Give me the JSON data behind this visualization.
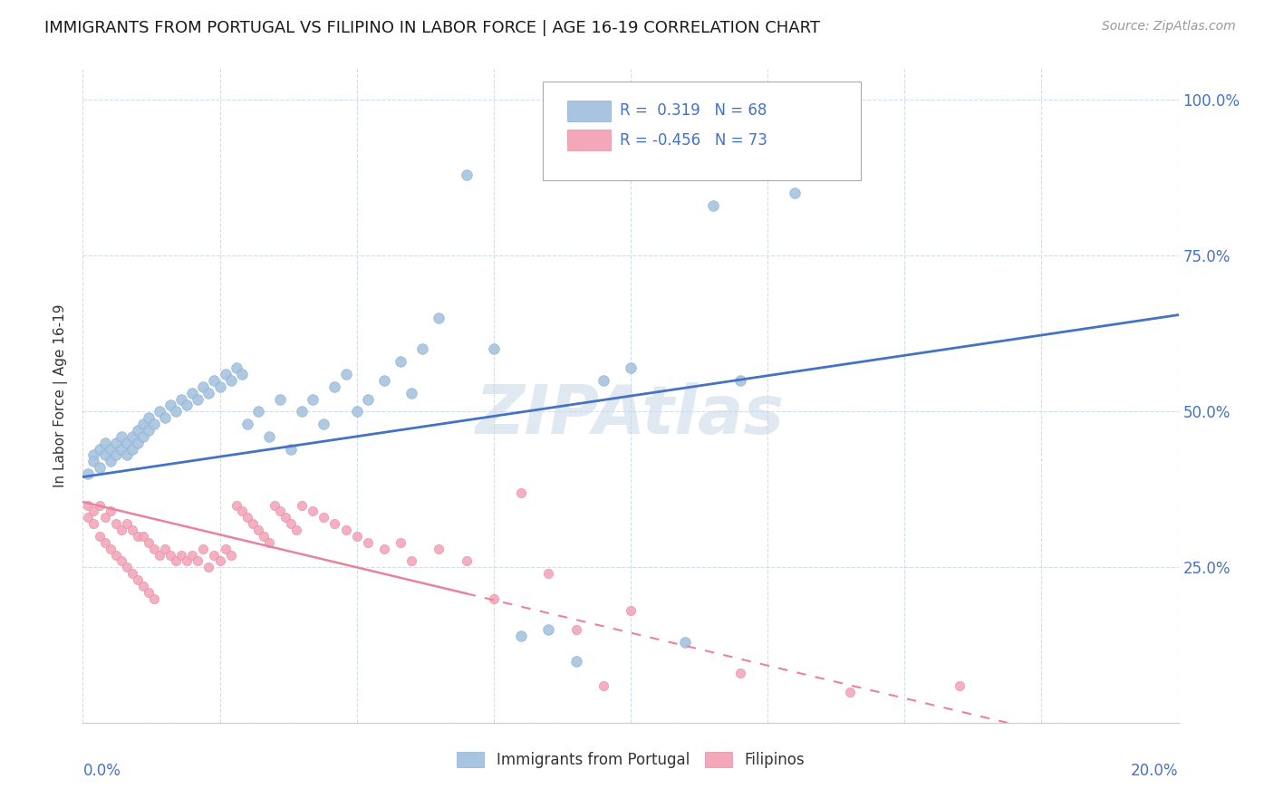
{
  "title": "IMMIGRANTS FROM PORTUGAL VS FILIPINO IN LABOR FORCE | AGE 16-19 CORRELATION CHART",
  "source": "Source: ZipAtlas.com",
  "ylabel": "In Labor Force | Age 16-19",
  "color_portugal": "#a8c4e0",
  "color_filipino": "#f4a7b9",
  "line_color_portugal": "#4472c4",
  "line_color_filipino": "#e8839a",
  "watermark_color": "#c8d8e8",
  "xlim": [
    0,
    0.2
  ],
  "ylim": [
    0,
    1.05
  ],
  "ytick_vals": [
    0.0,
    0.25,
    0.5,
    0.75,
    1.0
  ],
  "ytick_labels": [
    "",
    "25.0%",
    "50.0%",
    "75.0%",
    "100.0%"
  ],
  "portugal_x": [
    0.001,
    0.002,
    0.002,
    0.003,
    0.003,
    0.004,
    0.004,
    0.005,
    0.005,
    0.006,
    0.006,
    0.007,
    0.007,
    0.008,
    0.008,
    0.009,
    0.009,
    0.01,
    0.01,
    0.011,
    0.011,
    0.012,
    0.012,
    0.013,
    0.014,
    0.015,
    0.016,
    0.017,
    0.018,
    0.019,
    0.02,
    0.021,
    0.022,
    0.023,
    0.024,
    0.025,
    0.026,
    0.027,
    0.028,
    0.029,
    0.03,
    0.032,
    0.034,
    0.036,
    0.038,
    0.04,
    0.042,
    0.044,
    0.046,
    0.048,
    0.05,
    0.052,
    0.055,
    0.058,
    0.06,
    0.062,
    0.065,
    0.07,
    0.075,
    0.08,
    0.085,
    0.09,
    0.095,
    0.1,
    0.11,
    0.115,
    0.12,
    0.13
  ],
  "portugal_y": [
    0.4,
    0.43,
    0.42,
    0.44,
    0.41,
    0.43,
    0.45,
    0.42,
    0.44,
    0.43,
    0.45,
    0.44,
    0.46,
    0.43,
    0.45,
    0.44,
    0.46,
    0.45,
    0.47,
    0.46,
    0.48,
    0.47,
    0.49,
    0.48,
    0.5,
    0.49,
    0.51,
    0.5,
    0.52,
    0.51,
    0.53,
    0.52,
    0.54,
    0.53,
    0.55,
    0.54,
    0.56,
    0.55,
    0.57,
    0.56,
    0.48,
    0.5,
    0.46,
    0.52,
    0.44,
    0.5,
    0.52,
    0.48,
    0.54,
    0.56,
    0.5,
    0.52,
    0.55,
    0.58,
    0.53,
    0.6,
    0.65,
    0.88,
    0.6,
    0.14,
    0.15,
    0.1,
    0.55,
    0.57,
    0.13,
    0.83,
    0.55,
    0.85
  ],
  "filipino_x": [
    0.001,
    0.001,
    0.002,
    0.002,
    0.003,
    0.003,
    0.004,
    0.004,
    0.005,
    0.005,
    0.006,
    0.006,
    0.007,
    0.007,
    0.008,
    0.008,
    0.009,
    0.009,
    0.01,
    0.01,
    0.011,
    0.011,
    0.012,
    0.012,
    0.013,
    0.013,
    0.014,
    0.015,
    0.016,
    0.017,
    0.018,
    0.019,
    0.02,
    0.021,
    0.022,
    0.023,
    0.024,
    0.025,
    0.026,
    0.027,
    0.028,
    0.029,
    0.03,
    0.031,
    0.032,
    0.033,
    0.034,
    0.035,
    0.036,
    0.037,
    0.038,
    0.039,
    0.04,
    0.042,
    0.044,
    0.046,
    0.048,
    0.05,
    0.052,
    0.055,
    0.058,
    0.06,
    0.065,
    0.07,
    0.075,
    0.08,
    0.085,
    0.09,
    0.095,
    0.1,
    0.12,
    0.14,
    0.16
  ],
  "filipino_y": [
    0.35,
    0.33,
    0.34,
    0.32,
    0.35,
    0.3,
    0.33,
    0.29,
    0.34,
    0.28,
    0.32,
    0.27,
    0.31,
    0.26,
    0.32,
    0.25,
    0.31,
    0.24,
    0.3,
    0.23,
    0.3,
    0.22,
    0.29,
    0.21,
    0.28,
    0.2,
    0.27,
    0.28,
    0.27,
    0.26,
    0.27,
    0.26,
    0.27,
    0.26,
    0.28,
    0.25,
    0.27,
    0.26,
    0.28,
    0.27,
    0.35,
    0.34,
    0.33,
    0.32,
    0.31,
    0.3,
    0.29,
    0.35,
    0.34,
    0.33,
    0.32,
    0.31,
    0.35,
    0.34,
    0.33,
    0.32,
    0.31,
    0.3,
    0.29,
    0.28,
    0.29,
    0.26,
    0.28,
    0.26,
    0.2,
    0.37,
    0.24,
    0.15,
    0.06,
    0.18,
    0.08,
    0.05,
    0.06
  ],
  "portugal_line_x": [
    0.0,
    0.2
  ],
  "portugal_line_y_intercept": 0.395,
  "portugal_line_slope": 1.3,
  "filipino_line_x_solid_end": 0.07,
  "filipino_line_y_intercept": 0.355,
  "filipino_line_slope": -2.1
}
